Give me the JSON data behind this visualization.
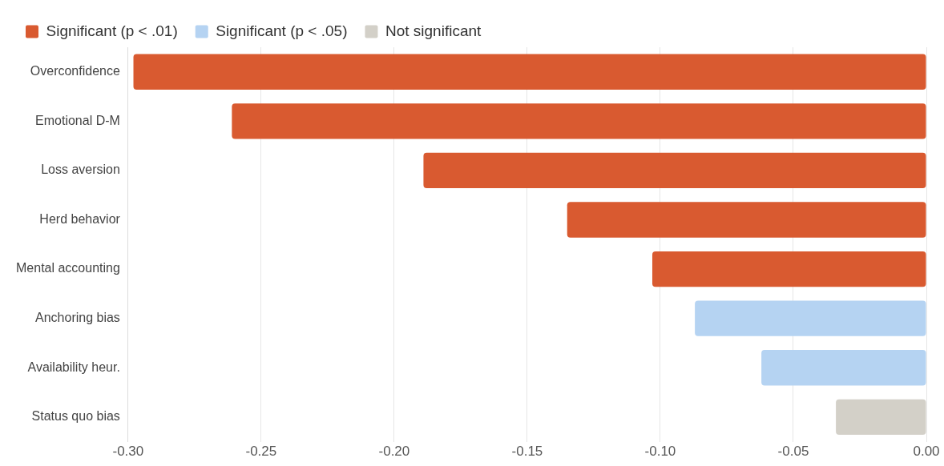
{
  "chart_data": {
    "type": "bar",
    "orientation": "horizontal",
    "categories": [
      "Overconfidence",
      "Emotional D-M",
      "Loss aversion",
      "Herd behavior",
      "Mental accounting",
      "Anchoring bias",
      "Availability heur.",
      "Status quo bias"
    ],
    "series": [
      {
        "name": "Significant (p < .01)",
        "color": "#d95a30",
        "values": [
          -0.298,
          -0.261,
          -0.189,
          -0.135,
          -0.103,
          null,
          null,
          null
        ]
      },
      {
        "name": "Significant (p < .05)",
        "color": "#b5d3f2",
        "values": [
          null,
          null,
          null,
          null,
          null,
          -0.087,
          -0.062,
          null
        ]
      },
      {
        "name": "Not significant",
        "color": "#d3d0c8",
        "values": [
          null,
          null,
          null,
          null,
          null,
          null,
          null,
          -0.034
        ]
      }
    ],
    "xlim": [
      -0.3,
      0
    ],
    "xticks": [
      {
        "value": -0.3,
        "label": "-0.30"
      },
      {
        "value": -0.25,
        "label": "-0.25"
      },
      {
        "value": -0.2,
        "label": "-0.20"
      },
      {
        "value": -0.15,
        "label": "-0.15"
      },
      {
        "value": -0.1,
        "label": "-0.10"
      },
      {
        "value": -0.05,
        "label": "-0.05"
      },
      {
        "value": 0,
        "label": "0.00"
      }
    ],
    "grid": "x",
    "legend": "top left"
  }
}
